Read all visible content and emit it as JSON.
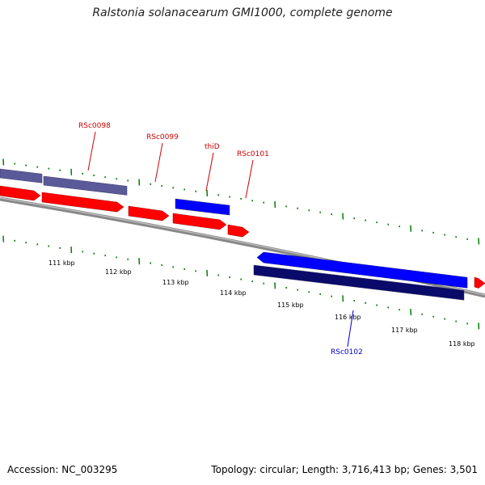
{
  "title": "Ralstonia solanacearum GMI1000, complete genome",
  "footer": {
    "accession": "Accession: NC_003295",
    "topology": "Topology: circular; Length: 3,716,413 bp; Genes: 3,501"
  },
  "colors": {
    "forward_cds": "#ff0000",
    "reverse_cds": "#0000ff",
    "outer_feature": "#5a5a9a",
    "inner_feature": "#0a0a6a",
    "label_forward": "#cc0000",
    "label_reverse": "#0000cc",
    "ticks": "#008000",
    "backbone": "#888888"
  },
  "scale_labels": [
    "111 kbp",
    "112 kbp",
    "113 kbp",
    "114 kbp",
    "115 kbp",
    "116 kbp",
    "117 kbp",
    "118 kbp"
  ],
  "genes": [
    {
      "label": "RSc0098",
      "strand": "forward"
    },
    {
      "label": "RSc0099",
      "strand": "forward"
    },
    {
      "label": "thiD",
      "strand": "forward"
    },
    {
      "label": "RSc0101",
      "strand": "forward"
    },
    {
      "label": "RSc0102",
      "strand": "reverse"
    }
  ]
}
